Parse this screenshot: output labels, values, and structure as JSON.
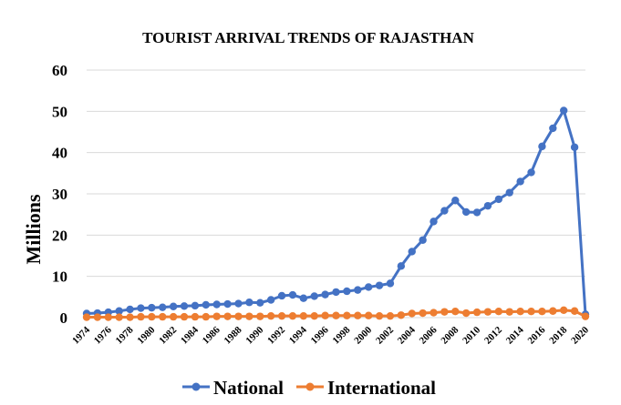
{
  "chart_data": {
    "type": "line",
    "title": "TOURIST ARRIVAL TRENDS OF RAJASTHAN",
    "xlabel": "",
    "ylabel": "Millions",
    "ylim": [
      0,
      60
    ],
    "yticks": [
      0,
      10,
      20,
      30,
      40,
      50,
      60
    ],
    "xticks": [
      1974,
      1976,
      1978,
      1980,
      1982,
      1984,
      1986,
      1988,
      1990,
      1992,
      1994,
      1996,
      1998,
      2000,
      2002,
      2004,
      2006,
      2008,
      2010,
      2012,
      2014,
      2016,
      2018,
      2020
    ],
    "x": [
      1974,
      1975,
      1976,
      1977,
      1978,
      1979,
      1980,
      1981,
      1982,
      1983,
      1984,
      1985,
      1986,
      1987,
      1988,
      1989,
      1990,
      1991,
      1992,
      1993,
      1994,
      1995,
      1996,
      1997,
      1998,
      1999,
      2000,
      2001,
      2002,
      2003,
      2004,
      2005,
      2006,
      2007,
      2008,
      2009,
      2010,
      2011,
      2012,
      2013,
      2014,
      2015,
      2016,
      2017,
      2018,
      2019,
      2020
    ],
    "grid": true,
    "legend_position": "bottom",
    "series": [
      {
        "name": "National",
        "color": "#4472c4",
        "values": [
          1.0,
          1.1,
          1.3,
          1.6,
          2.0,
          2.3,
          2.4,
          2.5,
          2.7,
          2.8,
          2.9,
          3.1,
          3.2,
          3.3,
          3.4,
          3.7,
          3.6,
          4.3,
          5.3,
          5.5,
          4.7,
          5.2,
          5.6,
          6.2,
          6.4,
          6.7,
          7.4,
          7.8,
          8.3,
          12.5,
          16.0,
          18.8,
          23.3,
          25.9,
          28.4,
          25.6,
          25.5,
          27.1,
          28.7,
          30.3,
          33.0,
          35.2,
          41.5,
          45.9,
          50.2,
          41.3,
          0.8
        ]
      },
      {
        "name": "International",
        "color": "#ed7d31",
        "values": [
          0.1,
          0.1,
          0.1,
          0.1,
          0.1,
          0.2,
          0.2,
          0.2,
          0.2,
          0.2,
          0.2,
          0.2,
          0.3,
          0.3,
          0.3,
          0.3,
          0.3,
          0.4,
          0.4,
          0.4,
          0.4,
          0.4,
          0.5,
          0.5,
          0.5,
          0.5,
          0.5,
          0.4,
          0.4,
          0.6,
          1.0,
          1.1,
          1.2,
          1.4,
          1.5,
          1.1,
          1.3,
          1.4,
          1.5,
          1.4,
          1.5,
          1.5,
          1.5,
          1.6,
          1.8,
          1.6,
          0.3
        ]
      }
    ]
  }
}
